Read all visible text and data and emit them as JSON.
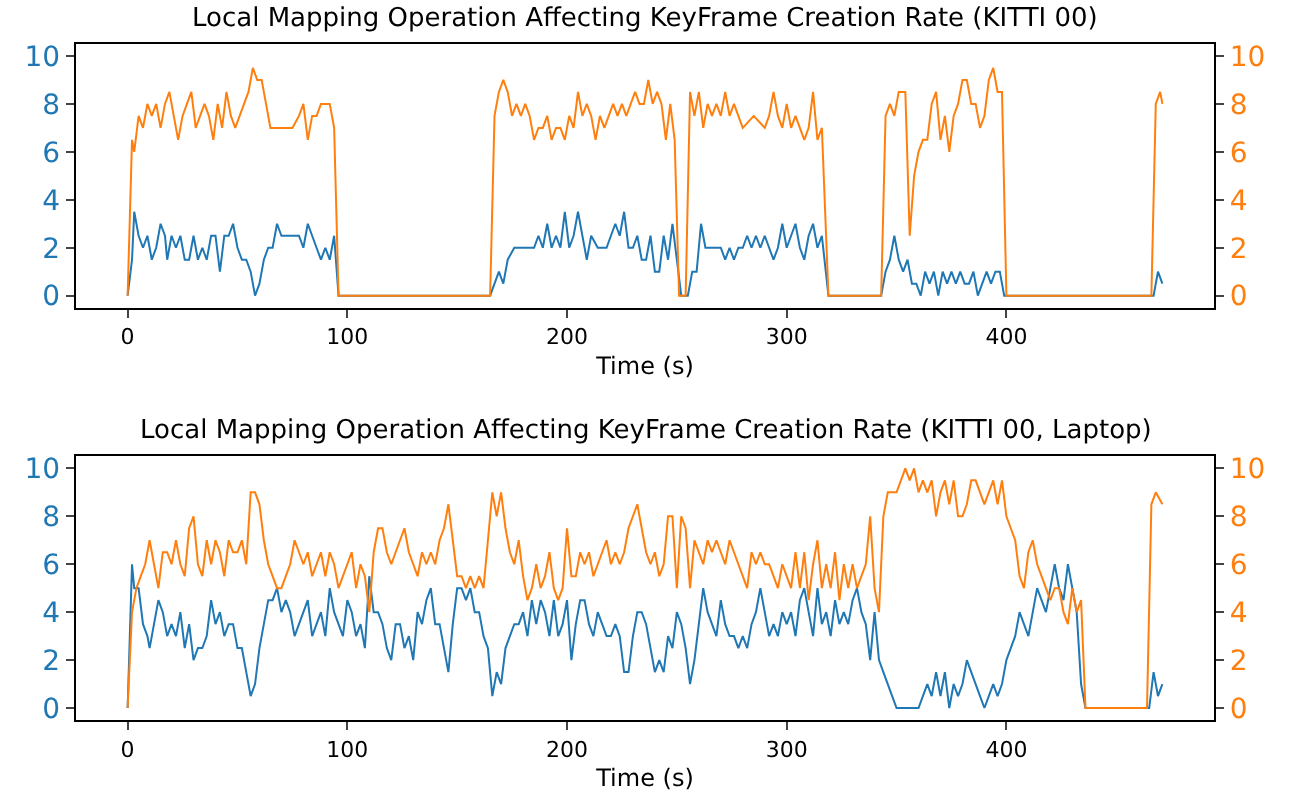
{
  "chart_data": [
    {
      "type": "line",
      "title": "Local Mapping Operation Affecting KeyFrame Creation Rate (KITTI 00)",
      "xlabel": "Time (s)",
      "xlim": [
        -23.5,
        494.5
      ],
      "xticks": [
        0,
        100,
        200,
        300,
        400
      ],
      "ylim": [
        -0.5,
        10.5
      ],
      "yticks": [
        0,
        2,
        4,
        6,
        8,
        10
      ],
      "y2lim": [
        -0.5,
        10.5
      ],
      "y2ticks": [
        0,
        2,
        4,
        6,
        8,
        10
      ],
      "series": [
        {
          "color": "#1f77b4",
          "x": [
            0,
            2,
            3,
            5,
            7,
            9,
            11,
            13,
            15,
            17,
            18,
            20,
            22,
            24,
            26,
            28,
            30,
            32,
            34,
            36,
            38,
            40,
            42,
            44,
            46,
            48,
            50,
            52,
            54,
            56,
            58,
            60,
            62,
            64,
            66,
            68,
            70,
            72,
            75,
            78,
            80,
            82,
            84,
            86,
            88,
            90,
            92,
            94,
            96,
            165,
            167,
            169,
            171,
            173,
            176,
            180,
            185,
            187,
            189,
            191,
            193,
            195,
            197,
            199,
            201,
            203,
            205,
            207,
            209,
            211,
            214,
            218,
            220,
            222,
            224,
            226,
            228,
            230,
            232,
            234,
            236,
            238,
            240,
            242,
            244,
            246,
            248,
            250,
            252,
            255,
            257,
            259,
            261,
            263,
            265,
            270,
            272,
            274,
            276,
            278,
            280,
            282,
            284,
            286,
            288,
            290,
            292,
            294,
            296,
            298,
            300,
            302,
            304,
            306,
            308,
            310,
            312,
            314,
            316,
            319,
            343,
            345,
            347,
            349,
            351,
            353,
            355,
            357,
            359,
            361,
            363,
            365,
            367,
            369,
            371,
            373,
            375,
            377,
            379,
            381,
            383,
            385,
            387,
            389,
            391,
            393,
            395,
            397,
            399,
            467,
            469,
            471
          ],
          "values": [
            0,
            1.5,
            3.5,
            2.5,
            2,
            2.5,
            1.5,
            2,
            3,
            2.5,
            1.5,
            2.5,
            2,
            2.5,
            1.5,
            1.5,
            2.5,
            1.5,
            2,
            1.5,
            2.5,
            2.5,
            1,
            2.5,
            2.5,
            3,
            2,
            1.5,
            1.5,
            1,
            0,
            0.5,
            1.5,
            2,
            2,
            3,
            2.5,
            2.5,
            2.5,
            2.5,
            2,
            3,
            2.5,
            2,
            1.5,
            2,
            1.5,
            2.5,
            0,
            0,
            0.5,
            1,
            0.5,
            1.5,
            2,
            2,
            2,
            2.5,
            2,
            3,
            2,
            2.5,
            2,
            3.5,
            2,
            2.5,
            3.5,
            2.5,
            1.5,
            2.5,
            2,
            2,
            2.5,
            3,
            2.5,
            3.5,
            2,
            2,
            2.5,
            1.5,
            1.5,
            2.5,
            1,
            1,
            2.5,
            1.5,
            3,
            1.5,
            0,
            0,
            1,
            1,
            3,
            2,
            2,
            2,
            1.5,
            2,
            1.5,
            2,
            2,
            2.5,
            2,
            2.5,
            2,
            2.5,
            2,
            1.5,
            2,
            3,
            2,
            2.5,
            3,
            2,
            1.5,
            2.5,
            3,
            2,
            2.5,
            0,
            0,
            1,
            1.5,
            2.5,
            1.5,
            1,
            1.5,
            0.5,
            0.5,
            0,
            1,
            0.5,
            1,
            0,
            1,
            0.5,
            1,
            0.5,
            1,
            0.5,
            0.5,
            1,
            0,
            0.5,
            1,
            0.5,
            1,
            1,
            0,
            0,
            1,
            0.5
          ]
        },
        {
          "color": "#ff7f0e",
          "axis": "y2",
          "x": [
            0,
            2,
            3,
            5,
            7,
            9,
            11,
            13,
            15,
            17,
            19,
            21,
            23,
            25,
            27,
            29,
            31,
            33,
            35,
            37,
            39,
            41,
            43,
            45,
            47,
            49,
            51,
            53,
            55,
            57,
            59,
            61,
            63,
            65,
            70,
            75,
            78,
            80,
            82,
            84,
            86,
            88,
            92,
            94,
            96,
            165,
            167,
            169,
            171,
            173,
            175,
            177,
            179,
            181,
            183,
            185,
            187,
            189,
            191,
            193,
            195,
            197,
            199,
            201,
            203,
            205,
            207,
            209,
            211,
            213,
            215,
            217,
            219,
            221,
            223,
            225,
            227,
            229,
            231,
            233,
            235,
            237,
            239,
            241,
            243,
            245,
            247,
            249,
            251,
            254,
            256,
            258,
            260,
            262,
            264,
            266,
            268,
            270,
            272,
            274,
            276,
            278,
            280,
            285,
            290,
            292,
            294,
            296,
            298,
            300,
            302,
            304,
            306,
            308,
            310,
            312,
            314,
            316,
            319,
            343,
            345,
            347,
            349,
            351,
            354,
            356,
            358,
            360,
            362,
            364,
            366,
            368,
            370,
            372,
            374,
            376,
            378,
            380,
            382,
            384,
            386,
            388,
            390,
            392,
            394,
            396,
            398,
            400,
            466,
            468,
            470,
            471
          ],
          "values": [
            0,
            6.5,
            6,
            7.5,
            7,
            8,
            7.5,
            8,
            7,
            8,
            8.5,
            7.5,
            6.5,
            7.5,
            8,
            8.5,
            7,
            7.5,
            8,
            7.5,
            6.5,
            8,
            7,
            8.5,
            7.5,
            7,
            7.5,
            8,
            8.5,
            9.5,
            9,
            9,
            8,
            7,
            7,
            7,
            7.5,
            8,
            6.5,
            7.5,
            7.5,
            8,
            8,
            7,
            0,
            0,
            7.5,
            8.5,
            9,
            8.5,
            7.5,
            8,
            7.5,
            8,
            7.5,
            6.5,
            7,
            7,
            7.5,
            6.5,
            7,
            7,
            6.5,
            7.5,
            7,
            8.5,
            7.5,
            8,
            7.5,
            6.5,
            7.5,
            7,
            7.5,
            8,
            7.5,
            8,
            7.5,
            8,
            8.5,
            8,
            8,
            9,
            8,
            8.5,
            8,
            6.5,
            8,
            6.5,
            0,
            0,
            8.5,
            7.5,
            8.5,
            7,
            8,
            7.5,
            8,
            7.5,
            8.5,
            7.5,
            8,
            7.5,
            7,
            7.5,
            7,
            7.5,
            8.5,
            7.5,
            7,
            8,
            7,
            7.5,
            7,
            6.5,
            7,
            8.5,
            6.5,
            7,
            0,
            0,
            7.5,
            8,
            7.5,
            8.5,
            8.5,
            2.5,
            5,
            6,
            6.5,
            6.5,
            8,
            8.5,
            6.5,
            7.5,
            6,
            7.5,
            8,
            9,
            9,
            8,
            8,
            7,
            7.5,
            9,
            9.5,
            8.5,
            8.5,
            0,
            0,
            8,
            8.5,
            8
          ]
        }
      ]
    },
    {
      "type": "line",
      "title": "Local Mapping Operation Affecting KeyFrame Creation Rate (KITTI 00, Laptop)",
      "xlabel": "Time (s)",
      "xlim": [
        -23.5,
        494.5
      ],
      "xticks": [
        0,
        100,
        200,
        300,
        400
      ],
      "ylim": [
        -0.5,
        10.5
      ],
      "yticks": [
        0,
        2,
        4,
        6,
        8,
        10
      ],
      "y2lim": [
        -0.5,
        10.5
      ],
      "y2ticks": [
        0,
        2,
        4,
        6,
        8,
        10
      ],
      "series": [
        {
          "color": "#1f77b4",
          "x": [
            0,
            2,
            3,
            5,
            7,
            9,
            10,
            12,
            14,
            16,
            18,
            20,
            22,
            24,
            26,
            28,
            30,
            32,
            34,
            36,
            38,
            40,
            42,
            44,
            46,
            48,
            50,
            52,
            54,
            56,
            58,
            60,
            62,
            64,
            66,
            68,
            70,
            72,
            74,
            76,
            78,
            80,
            82,
            84,
            86,
            88,
            90,
            92,
            94,
            96,
            98,
            100,
            102,
            104,
            106,
            108,
            110,
            112,
            114,
            116,
            118,
            120,
            122,
            124,
            126,
            128,
            130,
            132,
            134,
            136,
            138,
            140,
            142,
            144,
            146,
            148,
            150,
            152,
            154,
            156,
            158,
            160,
            162,
            164,
            166,
            168,
            170,
            172,
            174,
            176,
            178,
            180,
            182,
            184,
            186,
            188,
            190,
            192,
            194,
            196,
            198,
            200,
            202,
            204,
            206,
            208,
            210,
            212,
            214,
            216,
            218,
            220,
            222,
            224,
            226,
            228,
            230,
            232,
            234,
            236,
            238,
            240,
            242,
            244,
            246,
            248,
            250,
            252,
            254,
            256,
            258,
            260,
            262,
            264,
            266,
            268,
            270,
            272,
            274,
            276,
            278,
            280,
            282,
            284,
            286,
            288,
            290,
            292,
            294,
            296,
            298,
            300,
            302,
            304,
            306,
            308,
            310,
            312,
            314,
            316,
            318,
            320,
            322,
            324,
            326,
            328,
            330,
            332,
            334,
            336,
            338,
            340,
            342,
            344,
            346,
            348,
            350,
            355,
            360,
            362,
            364,
            366,
            368,
            370,
            372,
            374,
            376,
            378,
            380,
            382,
            384,
            386,
            388,
            390,
            392,
            394,
            396,
            398,
            400,
            402,
            404,
            406,
            408,
            410,
            412,
            414,
            416,
            418,
            420,
            422,
            424,
            426,
            428,
            430,
            432,
            434,
            436,
            465,
            467,
            469,
            471
          ],
          "values": [
            0,
            6,
            5,
            5,
            3.5,
            3,
            2.5,
            3.5,
            4.5,
            4,
            3,
            3.5,
            3,
            4,
            2.5,
            3.5,
            2,
            2.5,
            2.5,
            3,
            4.5,
            3.5,
            4,
            3,
            3.5,
            3.5,
            2.5,
            2.5,
            1.5,
            0.5,
            1,
            2.5,
            3.5,
            4.5,
            4.5,
            5,
            4,
            4.5,
            4,
            3,
            3.5,
            4,
            4.5,
            3,
            3.5,
            4,
            3,
            5,
            4,
            3.5,
            3,
            4.5,
            4,
            3,
            3.5,
            2.5,
            5.5,
            4,
            4,
            3.5,
            2.5,
            2,
            3.5,
            3.5,
            2.5,
            3,
            2,
            4,
            3.5,
            4.5,
            5,
            3.5,
            3.5,
            2.5,
            1.5,
            3.5,
            5,
            5,
            4.5,
            5,
            4,
            4,
            3,
            2.5,
            0.5,
            1.5,
            1,
            2.5,
            3,
            3.5,
            3.5,
            4,
            3,
            4.5,
            3.5,
            4.5,
            4,
            3,
            4.5,
            3,
            3.5,
            4.5,
            2,
            3.5,
            4.5,
            4.5,
            3.5,
            3,
            4,
            3.5,
            3,
            3,
            3.5,
            3,
            1.5,
            1.5,
            3,
            4,
            4,
            3.5,
            2.5,
            1.5,
            2,
            1.5,
            3,
            2.5,
            4,
            3.5,
            2.5,
            1,
            2,
            3.5,
            5,
            4,
            3.5,
            3,
            4.5,
            3.5,
            3,
            3,
            2.5,
            3,
            2.5,
            3.5,
            4,
            5,
            4,
            3,
            3.5,
            3,
            4,
            3.5,
            4,
            3,
            4.5,
            5,
            4,
            3,
            5,
            3.5,
            4,
            3,
            4.5,
            3.5,
            4,
            3.5,
            4.5,
            5,
            4,
            3.5,
            2,
            4,
            2,
            1.5,
            1,
            0.5,
            0,
            0,
            0,
            0.5,
            1,
            0.5,
            1.5,
            0.5,
            1.5,
            0,
            1,
            0.5,
            1,
            2,
            1.5,
            1,
            0.5,
            0,
            0.5,
            1,
            0.5,
            1,
            2,
            2.5,
            3,
            4,
            3.5,
            3,
            4,
            5,
            4.5,
            4,
            5,
            6,
            5,
            4.5,
            6,
            5,
            4,
            1,
            0,
            0,
            1.5,
            0.5,
            1
          ]
        },
        {
          "color": "#ff7f0e",
          "axis": "y2",
          "x": [
            0,
            2,
            4,
            6,
            8,
            10,
            12,
            14,
            16,
            18,
            20,
            22,
            24,
            26,
            28,
            30,
            32,
            34,
            36,
            38,
            40,
            42,
            44,
            46,
            48,
            50,
            52,
            54,
            56,
            58,
            60,
            62,
            64,
            66,
            68,
            70,
            72,
            74,
            76,
            78,
            80,
            82,
            84,
            86,
            88,
            90,
            92,
            94,
            96,
            98,
            100,
            102,
            104,
            106,
            108,
            110,
            112,
            114,
            116,
            118,
            120,
            122,
            124,
            126,
            128,
            130,
            132,
            134,
            136,
            138,
            140,
            142,
            144,
            146,
            148,
            150,
            152,
            154,
            156,
            158,
            160,
            162,
            164,
            166,
            168,
            170,
            172,
            174,
            176,
            178,
            180,
            182,
            184,
            186,
            188,
            190,
            192,
            194,
            196,
            198,
            200,
            202,
            204,
            206,
            208,
            210,
            212,
            214,
            216,
            218,
            220,
            222,
            224,
            226,
            228,
            230,
            232,
            234,
            236,
            238,
            240,
            242,
            244,
            246,
            248,
            250,
            252,
            254,
            256,
            258,
            260,
            262,
            264,
            266,
            268,
            270,
            272,
            274,
            276,
            278,
            280,
            282,
            284,
            286,
            288,
            290,
            292,
            294,
            296,
            298,
            300,
            302,
            304,
            306,
            308,
            310,
            312,
            314,
            316,
            318,
            320,
            322,
            324,
            326,
            328,
            330,
            332,
            334,
            336,
            338,
            340,
            342,
            344,
            346,
            350,
            352,
            354,
            356,
            358,
            360,
            362,
            364,
            366,
            368,
            370,
            372,
            374,
            376,
            378,
            380,
            382,
            384,
            386,
            388,
            390,
            392,
            394,
            396,
            398,
            400,
            402,
            404,
            406,
            408,
            410,
            412,
            414,
            416,
            418,
            420,
            422,
            424,
            426,
            428,
            430,
            432,
            434,
            436,
            464,
            466,
            468,
            471
          ],
          "values": [
            0,
            4,
            5,
            5.5,
            6,
            7,
            6,
            5,
            6.5,
            6.5,
            6,
            7,
            6,
            5.5,
            7.5,
            8,
            6,
            5.5,
            7,
            6,
            7,
            6.5,
            5.5,
            7,
            6.5,
            6.5,
            7,
            6,
            9,
            9,
            8.5,
            7,
            6,
            5.5,
            5,
            5,
            5.5,
            6,
            7,
            6.5,
            6,
            6.5,
            5.5,
            6,
            6.5,
            5.5,
            6.5,
            6,
            5,
            5.5,
            6,
            6.5,
            5,
            6,
            5.5,
            4,
            6.5,
            7.5,
            7.5,
            6.5,
            6,
            6.5,
            7,
            7.5,
            6.5,
            6,
            5.5,
            6.5,
            6,
            6.5,
            6,
            7,
            7.5,
            8.5,
            7,
            5.5,
            5.5,
            5,
            5.5,
            5,
            5.5,
            5,
            7,
            9,
            8,
            9,
            7.5,
            6.5,
            6,
            7,
            5.5,
            4.5,
            5,
            6,
            5,
            5.5,
            6.5,
            5,
            4.5,
            5,
            7.5,
            5.5,
            5.5,
            6.5,
            6,
            6.5,
            5.5,
            6,
            6.5,
            7,
            6,
            6.5,
            6,
            6.5,
            7.5,
            8,
            8.5,
            7.5,
            6.5,
            6,
            6.5,
            5.5,
            6,
            8,
            8,
            5,
            8,
            7.5,
            5,
            7,
            6.5,
            6,
            7,
            6.5,
            7,
            6.5,
            6,
            7,
            6.5,
            6,
            5.5,
            5,
            6.5,
            6,
            6.5,
            6,
            6,
            5.5,
            5,
            6,
            5.5,
            5,
            6.5,
            5,
            6.5,
            4.5,
            6,
            7,
            5,
            6,
            5,
            6.5,
            4.5,
            6,
            5,
            6,
            5,
            5.5,
            6,
            8,
            5,
            4,
            8,
            9,
            9,
            9.5,
            10,
            9.5,
            10,
            9,
            9.5,
            9,
            9.5,
            8,
            9,
            9.5,
            8.5,
            9.5,
            8,
            8,
            8.5,
            9.5,
            9.5,
            9,
            8.5,
            9,
            9.5,
            8.5,
            9.5,
            8,
            7.5,
            7,
            5.5,
            5,
            6.5,
            7,
            6,
            5.5,
            5,
            4.5,
            5,
            5,
            4,
            3.5,
            5,
            4,
            4.5,
            0,
            0,
            8.5,
            9,
            8.5
          ]
        }
      ]
    }
  ]
}
